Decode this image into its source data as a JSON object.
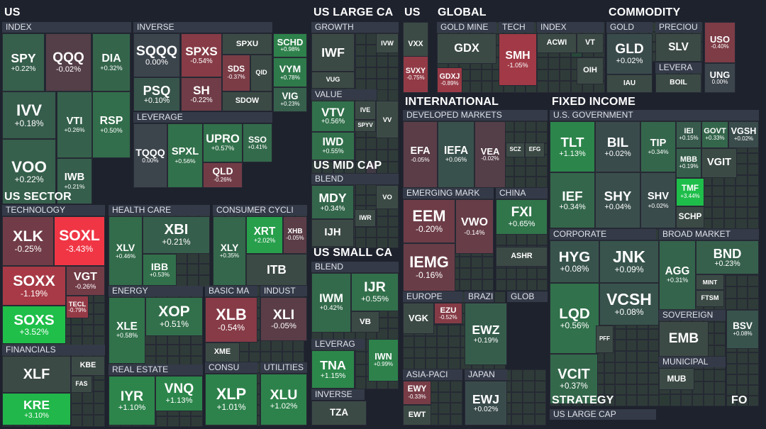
{
  "chart_data": {
    "type": "heatmap",
    "title": "",
    "color_scale": {
      "negative": "#f23645",
      "neutral": "#434651",
      "positive": "#089981"
    },
    "sections": [
      {
        "title": "US"
      },
      {
        "title": "US SECTOR"
      },
      {
        "title": "US LARGE CA"
      },
      {
        "title": "US"
      },
      {
        "title": "GLOBAL"
      },
      {
        "title": "COMMODITY"
      },
      {
        "title": "US MID CAP"
      },
      {
        "title": "INTERNATIONAL"
      },
      {
        "title": "FIXED INCOME"
      },
      {
        "title": "US SMALL CA"
      },
      {
        "title": "STRATEGY"
      },
      {
        "title": "FO"
      }
    ],
    "groups": [
      {
        "label": "INDEX"
      },
      {
        "label": "INVERSE"
      },
      {
        "label": "LEVERAGE"
      },
      {
        "label": "TECHNOLOGY"
      },
      {
        "label": "HEALTH CARE"
      },
      {
        "label": "CONSUMER CYCLI"
      },
      {
        "label": "ENERGY"
      },
      {
        "label": "BASIC MA"
      },
      {
        "label": "INDUST"
      },
      {
        "label": "FINANCIALS"
      },
      {
        "label": "REAL ESTATE"
      },
      {
        "label": "CONSU"
      },
      {
        "label": "UTILITIES"
      },
      {
        "label": "GROWTH"
      },
      {
        "label": "VALUE"
      },
      {
        "label": "BLEND"
      },
      {
        "label": "BLEND"
      },
      {
        "label": "LEVERAG"
      },
      {
        "label": "INVERSE"
      },
      {
        "label": "GOLD MINE"
      },
      {
        "label": "TECH"
      },
      {
        "label": "INDEX"
      },
      {
        "label": "GOLD"
      },
      {
        "label": "PRECIOU"
      },
      {
        "label": "LEVERA"
      },
      {
        "label": "DEVELOPED MARKETS"
      },
      {
        "label": "EMERGING MARK"
      },
      {
        "label": "CHINA"
      },
      {
        "label": "EUROPE"
      },
      {
        "label": "BRAZI"
      },
      {
        "label": "GLOB"
      },
      {
        "label": "ASIA-PACI"
      },
      {
        "label": "JAPAN"
      },
      {
        "label": "U.S. GOVERNMENT"
      },
      {
        "label": "CORPORATE"
      },
      {
        "label": "BROAD MARKET"
      },
      {
        "label": "SOVEREIGN"
      },
      {
        "label": "MUNICIPAL"
      },
      {
        "label": "US LARGE CAP"
      }
    ],
    "tiles": [
      {
        "ticker": "SPY",
        "change": 0.22
      },
      {
        "ticker": "QQQ",
        "change": -0.02
      },
      {
        "ticker": "DIA",
        "change": 0.32
      },
      {
        "ticker": "IVV",
        "change": 0.18
      },
      {
        "ticker": "VTI",
        "change": 0.26
      },
      {
        "ticker": "RSP",
        "change": 0.5
      },
      {
        "ticker": "VOO",
        "change": 0.22
      },
      {
        "ticker": "IWB",
        "change": 0.21
      },
      {
        "ticker": "SQQQ",
        "change": 0.0
      },
      {
        "ticker": "SPXS",
        "change": -0.54
      },
      {
        "ticker": "SPXU",
        "change": null
      },
      {
        "ticker": "PSQ",
        "change": 0.1
      },
      {
        "ticker": "SH",
        "change": -0.22
      },
      {
        "ticker": "SDS",
        "change": -0.37
      },
      {
        "ticker": "QID",
        "change": null
      },
      {
        "ticker": "SDOW",
        "change": null
      },
      {
        "ticker": "TQQQ",
        "change": 0.0
      },
      {
        "ticker": "SPXL",
        "change": 0.56
      },
      {
        "ticker": "UPRO",
        "change": 0.57
      },
      {
        "ticker": "SSO",
        "change": 0.41
      },
      {
        "ticker": "QLD",
        "change": -0.26
      },
      {
        "ticker": "SCHD",
        "change": 0.98
      },
      {
        "ticker": "VYM",
        "change": 0.78
      },
      {
        "ticker": "VIG",
        "change": 0.23
      },
      {
        "ticker": "XLK",
        "change": -0.25
      },
      {
        "ticker": "SOXL",
        "change": -3.43
      },
      {
        "ticker": "SOXX",
        "change": -1.19
      },
      {
        "ticker": "VGT",
        "change": -0.26
      },
      {
        "ticker": "TECL",
        "change": -0.79
      },
      {
        "ticker": "SOXS",
        "change": 3.52
      },
      {
        "ticker": "XLV",
        "change": 0.46
      },
      {
        "ticker": "XBI",
        "change": 0.21
      },
      {
        "ticker": "IBB",
        "change": 0.53
      },
      {
        "ticker": "XLY",
        "change": 0.35
      },
      {
        "ticker": "XRT",
        "change": 2.02
      },
      {
        "ticker": "XHB",
        "change": -0.05
      },
      {
        "ticker": "ITB",
        "change": null
      },
      {
        "ticker": "XLE",
        "change": 0.58
      },
      {
        "ticker": "XOP",
        "change": 0.51
      },
      {
        "ticker": "XLB",
        "change": -0.54
      },
      {
        "ticker": "XME",
        "change": null
      },
      {
        "ticker": "XLI",
        "change": -0.05
      },
      {
        "ticker": "XLF",
        "change": null
      },
      {
        "ticker": "KBE",
        "change": null
      },
      {
        "ticker": "FAS",
        "change": null
      },
      {
        "ticker": "KRE",
        "change": 3.1
      },
      {
        "ticker": "IYR",
        "change": 1.1
      },
      {
        "ticker": "VNQ",
        "change": 1.13
      },
      {
        "ticker": "XLP",
        "change": 1.01
      },
      {
        "ticker": "XLU",
        "change": 1.02
      },
      {
        "ticker": "IWF",
        "change": null
      },
      {
        "ticker": "IVW",
        "change": null
      },
      {
        "ticker": "VUG",
        "change": null
      },
      {
        "ticker": "VTV",
        "change": 0.56
      },
      {
        "ticker": "IVE",
        "change": null
      },
      {
        "ticker": "SPYV",
        "change": null
      },
      {
        "ticker": "VV",
        "change": null
      },
      {
        "ticker": "IWD",
        "change": 0.55
      },
      {
        "ticker": "MDY",
        "change": 0.34
      },
      {
        "ticker": "VO",
        "change": null
      },
      {
        "ticker": "IWR",
        "change": null
      },
      {
        "ticker": "IJH",
        "change": null
      },
      {
        "ticker": "IWM",
        "change": 0.42
      },
      {
        "ticker": "IJR",
        "change": 0.55
      },
      {
        "ticker": "VB",
        "change": null
      },
      {
        "ticker": "TNA",
        "change": 1.15
      },
      {
        "ticker": "IWN",
        "change": 0.99
      },
      {
        "ticker": "TZA",
        "change": null
      },
      {
        "ticker": "VXX",
        "change": null
      },
      {
        "ticker": "SVXY",
        "change": -0.75
      },
      {
        "ticker": "GDX",
        "change": null
      },
      {
        "ticker": "GDXJ",
        "change": -0.89
      },
      {
        "ticker": "SMH",
        "change": -1.05
      },
      {
        "ticker": "ACWI",
        "change": null
      },
      {
        "ticker": "VT",
        "change": null
      },
      {
        "ticker": "OIH",
        "change": null
      },
      {
        "ticker": "GLD",
        "change": 0.02
      },
      {
        "ticker": "IAU",
        "change": null
      },
      {
        "ticker": "SLV",
        "change": null
      },
      {
        "ticker": "USO",
        "change": -0.4
      },
      {
        "ticker": "BOIL",
        "change": null
      },
      {
        "ticker": "UNG",
        "change": 0.0
      },
      {
        "ticker": "EFA",
        "change": -0.05
      },
      {
        "ticker": "IEFA",
        "change": 0.06
      },
      {
        "ticker": "VEA",
        "change": -0.02
      },
      {
        "ticker": "SCZ",
        "change": null
      },
      {
        "ticker": "EFG",
        "change": null
      },
      {
        "ticker": "EEM",
        "change": -0.2
      },
      {
        "ticker": "VWO",
        "change": -0.14
      },
      {
        "ticker": "IEMG",
        "change": -0.16
      },
      {
        "ticker": "FXI",
        "change": 0.65
      },
      {
        "ticker": "ASHR",
        "change": null
      },
      {
        "ticker": "VGK",
        "change": null
      },
      {
        "ticker": "EZU",
        "change": -0.52
      },
      {
        "ticker": "EWZ",
        "change": 0.19
      },
      {
        "ticker": "EWY",
        "change": -0.33
      },
      {
        "ticker": "EWT",
        "change": null
      },
      {
        "ticker": "EWJ",
        "change": 0.02
      },
      {
        "ticker": "TLT",
        "change": 1.13
      },
      {
        "ticker": "BIL",
        "change": 0.02
      },
      {
        "ticker": "TIP",
        "change": 0.34
      },
      {
        "ticker": "IEI",
        "change": 0.15
      },
      {
        "ticker": "GOVT",
        "change": 0.33
      },
      {
        "ticker": "VGSH",
        "change": 0.02
      },
      {
        "ticker": "MBB",
        "change": 0.19
      },
      {
        "ticker": "VGIT",
        "change": null
      },
      {
        "ticker": "IEF",
        "change": 0.34
      },
      {
        "ticker": "SHY",
        "change": 0.04
      },
      {
        "ticker": "SHV",
        "change": 0.02
      },
      {
        "ticker": "TMF",
        "change": 3.44
      },
      {
        "ticker": "SCHP",
        "change": null
      },
      {
        "ticker": "HYG",
        "change": 0.08
      },
      {
        "ticker": "JNK",
        "change": 0.09
      },
      {
        "ticker": "LQD",
        "change": 0.56
      },
      {
        "ticker": "VCSH",
        "change": 0.08
      },
      {
        "ticker": "PFF",
        "change": null
      },
      {
        "ticker": "VCIT",
        "change": 0.37
      },
      {
        "ticker": "AGG",
        "change": 0.31
      },
      {
        "ticker": "BND",
        "change": 0.23
      },
      {
        "ticker": "MINT",
        "change": null
      },
      {
        "ticker": "FTSM",
        "change": null
      },
      {
        "ticker": "EMB",
        "change": null
      },
      {
        "ticker": "BSV",
        "change": 0.08
      },
      {
        "ticker": "MUB",
        "change": null
      }
    ]
  }
}
